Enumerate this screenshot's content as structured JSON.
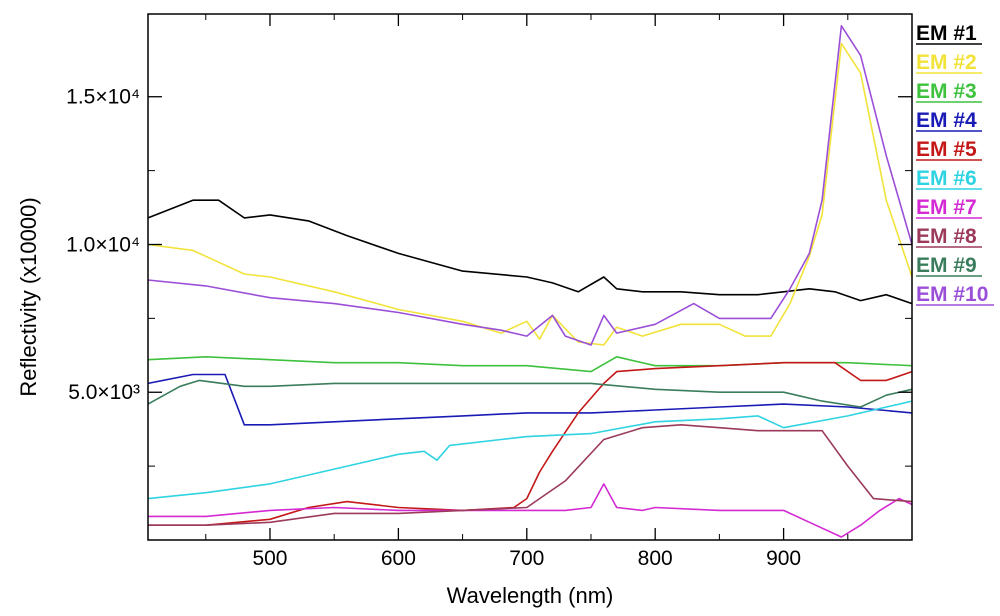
{
  "chart_data": {
    "type": "line",
    "title": "",
    "xlabel": "Wavelength (nm)",
    "ylabel": "Reflectivity (x10000)",
    "xlim": [
      405,
      1000
    ],
    "ylim": [
      0,
      17800
    ],
    "grid": false,
    "legend_position": "right",
    "x_ticks": [
      {
        "value": 500,
        "label": "500"
      },
      {
        "value": 600,
        "label": "600"
      },
      {
        "value": 700,
        "label": "700"
      },
      {
        "value": 800,
        "label": "800"
      },
      {
        "value": 900,
        "label": "900"
      }
    ],
    "y_ticks": [
      {
        "value": 5000,
        "label": "5.0×10³"
      },
      {
        "value": 10000,
        "label": "1.0×10⁴"
      },
      {
        "value": 15000,
        "label": "1.5×10⁴"
      }
    ],
    "y_minor_ticks": [
      2500,
      7500,
      12500
    ],
    "x_minor_ticks": [
      450,
      550,
      650,
      750,
      850,
      950
    ],
    "series": [
      {
        "name": "EM #1",
        "color": "#000000",
        "x": [
          405,
          440,
          460,
          480,
          500,
          530,
          560,
          600,
          650,
          700,
          720,
          740,
          760,
          770,
          790,
          820,
          850,
          880,
          900,
          920,
          940,
          960,
          980,
          1000
        ],
        "y": [
          10900,
          11500,
          11500,
          10900,
          11000,
          10800,
          10300,
          9700,
          9100,
          8900,
          8700,
          8400,
          8900,
          8500,
          8400,
          8400,
          8300,
          8300,
          8400,
          8500,
          8400,
          8100,
          8300,
          8000
        ]
      },
      {
        "name": "EM #2",
        "color": "#f2e33a",
        "x": [
          405,
          440,
          460,
          480,
          500,
          550,
          600,
          650,
          680,
          700,
          710,
          720,
          740,
          760,
          770,
          790,
          820,
          850,
          870,
          890,
          905,
          920,
          930,
          945,
          960,
          980,
          1000
        ],
        "y": [
          10000,
          9800,
          9400,
          9000,
          8900,
          8400,
          7800,
          7400,
          7000,
          7400,
          6800,
          7600,
          6700,
          6600,
          7200,
          6900,
          7300,
          7300,
          6900,
          6900,
          8000,
          9600,
          11000,
          16800,
          15800,
          11500,
          8900
        ]
      },
      {
        "name": "EM #3",
        "color": "#3ec23e",
        "x": [
          405,
          450,
          500,
          550,
          600,
          650,
          700,
          750,
          770,
          800,
          850,
          900,
          950,
          1000
        ],
        "y": [
          6100,
          6200,
          6100,
          6000,
          6000,
          5900,
          5900,
          5700,
          6200,
          5900,
          5900,
          6000,
          6000,
          5900
        ]
      },
      {
        "name": "EM #4",
        "color": "#1a1ab5",
        "x": [
          405,
          440,
          465,
          480,
          500,
          550,
          600,
          650,
          700,
          750,
          800,
          850,
          900,
          950,
          1000
        ],
        "y": [
          5300,
          5600,
          5600,
          3900,
          3900,
          4000,
          4100,
          4200,
          4300,
          4300,
          4400,
          4500,
          4600,
          4500,
          4300
        ]
      },
      {
        "name": "EM #5",
        "color": "#c41818",
        "x": [
          405,
          450,
          500,
          530,
          560,
          600,
          650,
          690,
          700,
          710,
          720,
          740,
          760,
          770,
          800,
          850,
          900,
          940,
          960,
          980,
          1000
        ],
        "y": [
          500,
          500,
          700,
          1100,
          1300,
          1100,
          1000,
          1100,
          1400,
          2300,
          3000,
          4300,
          5300,
          5700,
          5800,
          5900,
          6000,
          6000,
          5400,
          5400,
          5700
        ]
      },
      {
        "name": "EM #6",
        "color": "#2fd3e2",
        "x": [
          405,
          450,
          500,
          550,
          600,
          620,
          630,
          640,
          680,
          700,
          750,
          800,
          850,
          880,
          900,
          950,
          1000
        ],
        "y": [
          1400,
          1600,
          1900,
          2400,
          2900,
          3000,
          2700,
          3200,
          3400,
          3500,
          3600,
          4000,
          4100,
          4200,
          3800,
          4200,
          4700
        ]
      },
      {
        "name": "EM #7",
        "color": "#d42ad4",
        "x": [
          405,
          450,
          500,
          550,
          600,
          650,
          700,
          730,
          750,
          760,
          770,
          790,
          800,
          850,
          900,
          925,
          945,
          960,
          975,
          990,
          1000
        ],
        "y": [
          800,
          800,
          1000,
          1100,
          1000,
          1000,
          1000,
          1000,
          1100,
          1900,
          1100,
          1000,
          1100,
          1000,
          1000,
          500,
          100,
          500,
          1000,
          1400,
          1200
        ]
      },
      {
        "name": "EM #8",
        "color": "#9b3a5a",
        "x": [
          405,
          450,
          500,
          550,
          600,
          650,
          700,
          710,
          730,
          760,
          790,
          820,
          850,
          880,
          900,
          930,
          950,
          970,
          1000
        ],
        "y": [
          500,
          500,
          600,
          900,
          900,
          1000,
          1100,
          1400,
          2000,
          3400,
          3800,
          3900,
          3800,
          3700,
          3700,
          3700,
          2500,
          1400,
          1300
        ]
      },
      {
        "name": "EM #9",
        "color": "#3a7d5c",
        "x": [
          405,
          430,
          445,
          480,
          500,
          550,
          600,
          650,
          700,
          750,
          800,
          850,
          900,
          930,
          960,
          980,
          1000
        ],
        "y": [
          4600,
          5200,
          5400,
          5200,
          5200,
          5300,
          5300,
          5300,
          5300,
          5300,
          5100,
          5000,
          5000,
          4700,
          4500,
          4900,
          5100
        ]
      },
      {
        "name": "EM #10",
        "color": "#9b4fd8",
        "x": [
          405,
          450,
          500,
          550,
          600,
          650,
          680,
          700,
          720,
          730,
          750,
          760,
          770,
          800,
          830,
          850,
          870,
          890,
          905,
          920,
          930,
          945,
          960,
          980,
          1000
        ],
        "y": [
          8800,
          8600,
          8200,
          8000,
          7700,
          7300,
          7100,
          6900,
          7600,
          6900,
          6600,
          7600,
          7000,
          7300,
          8000,
          7500,
          7500,
          7500,
          8500,
          9700,
          11500,
          17400,
          16400,
          13000,
          10000
        ]
      }
    ]
  }
}
